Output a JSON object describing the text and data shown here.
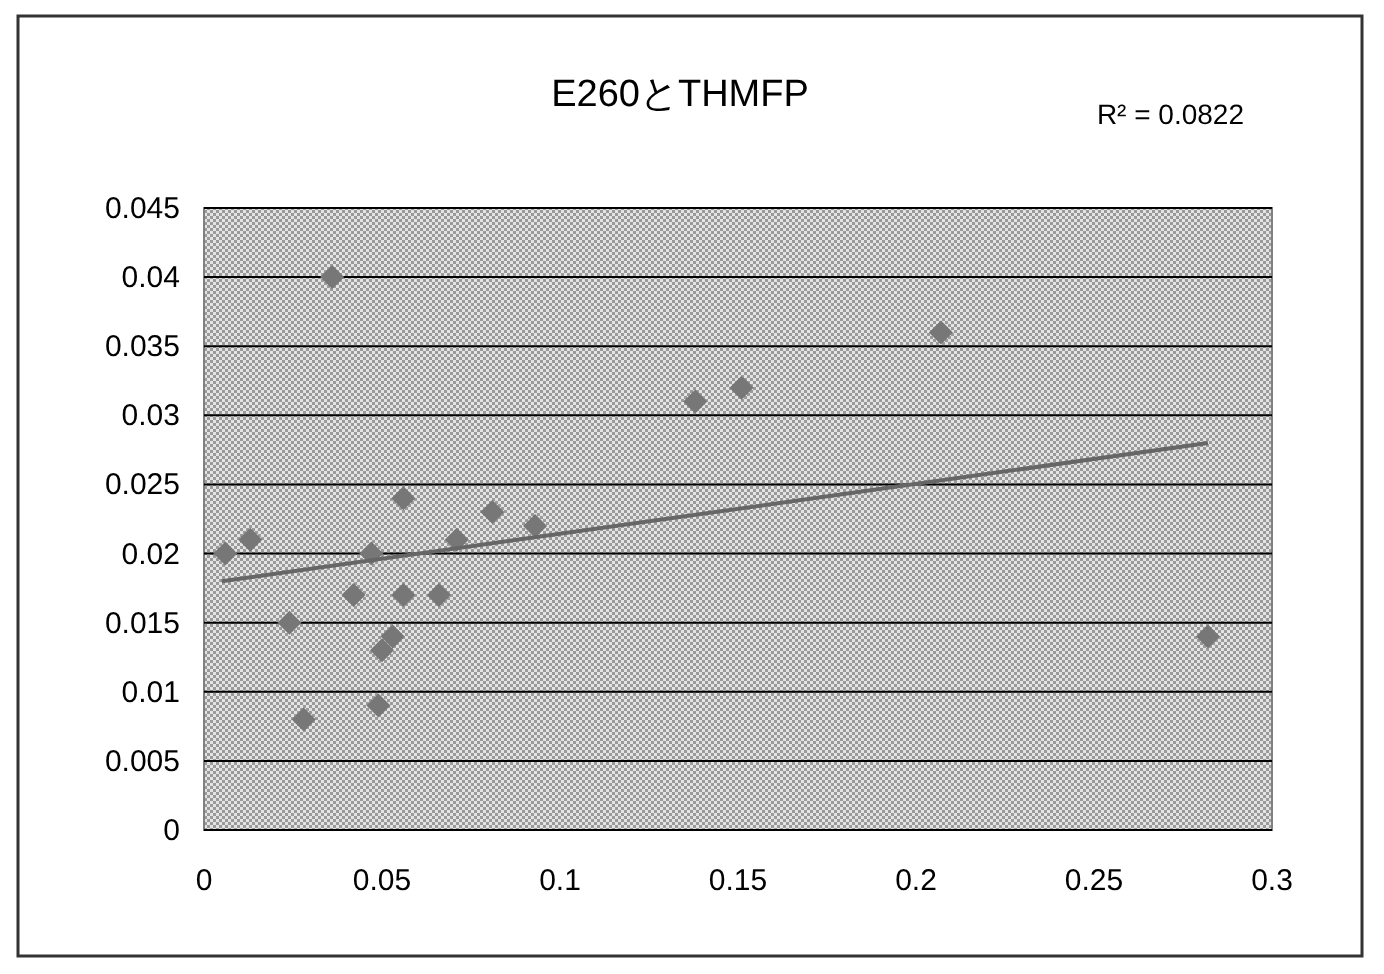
{
  "chart_data": {
    "type": "scatter",
    "title": "E260とTHMFP",
    "annotations": [
      "R² = 0.0822"
    ],
    "xlim": [
      0,
      0.3
    ],
    "xticks": [
      0,
      0.05,
      0.1,
      0.15,
      0.2,
      0.25,
      0.3
    ],
    "ylim": [
      0,
      0.045
    ],
    "yticks": [
      0,
      0.005,
      0.01,
      0.015,
      0.02,
      0.025,
      0.03,
      0.035,
      0.04,
      0.045
    ],
    "grid": "y",
    "marker": "diamond",
    "series": [
      {
        "color": "#777777",
        "x": [
          0.006,
          0.013,
          0.024,
          0.028,
          0.036,
          0.042,
          0.047,
          0.056,
          0.056,
          0.053,
          0.05,
          0.049,
          0.066,
          0.071,
          0.081,
          0.093,
          0.138,
          0.151,
          0.207,
          0.282
        ],
        "values": [
          0.02,
          0.021,
          0.015,
          0.008,
          0.04,
          0.017,
          0.02,
          0.024,
          0.017,
          0.014,
          0.013,
          0.009,
          0.017,
          0.021,
          0.023,
          0.022,
          0.031,
          0.032,
          0.036,
          0.014
        ]
      },
      {
        "type": "line",
        "marker": "none",
        "color": "#666666",
        "x": [
          0.005,
          0.282
        ],
        "values": [
          0.018,
          0.028
        ]
      }
    ]
  }
}
